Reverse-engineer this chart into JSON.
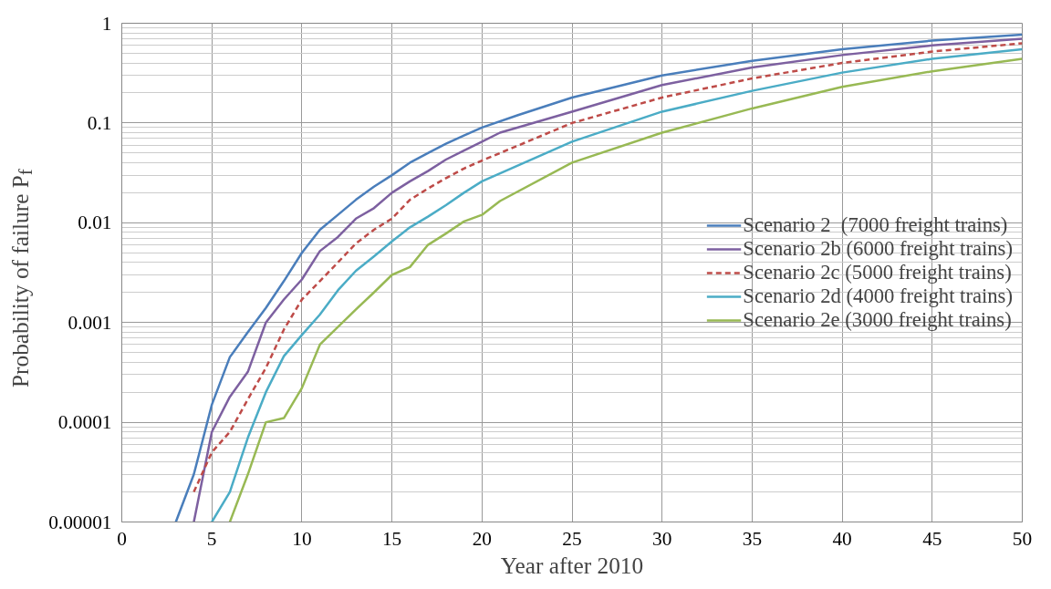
{
  "chart_data": {
    "type": "line",
    "xlabel": "Year after 2010",
    "ylabel": "Probability of failure P$_{f}$",
    "log": "y",
    "xlim": [
      0,
      50
    ],
    "xticks": [
      0,
      5,
      10,
      15,
      20,
      25,
      30,
      35,
      40,
      45,
      50
    ],
    "ylim": [
      1e-05,
      1
    ],
    "yticks": [
      {
        "value": 1e-05,
        "label": "0.00001"
      },
      {
        "value": 0.0001,
        "label": "0.0001"
      },
      {
        "value": 0.001,
        "label": "0.001"
      },
      {
        "value": 0.01,
        "label": "0.01"
      },
      {
        "value": 0.1,
        "label": "0.1"
      },
      {
        "value": 1,
        "label": "1"
      }
    ],
    "grid": true,
    "legend": "right",
    "marker": "none",
    "series": [
      {
        "name": "Scenario 2  (7000 freight trains)",
        "color": "#4a7ebb",
        "line_style": "solid",
        "x": [
          3,
          4,
          5,
          6,
          7,
          8,
          9,
          10,
          11,
          12,
          13,
          14,
          15,
          16,
          17,
          18,
          19,
          20,
          22,
          25,
          30,
          35,
          40,
          45,
          50
        ],
        "values": [
          1e-05,
          3e-05,
          0.00015,
          0.00045,
          0.0008,
          0.0014,
          0.0026,
          0.005,
          0.0085,
          0.012,
          0.017,
          0.023,
          0.03,
          0.04,
          0.05,
          0.062,
          0.075,
          0.09,
          0.12,
          0.18,
          0.3,
          0.42,
          0.55,
          0.67,
          0.77
        ]
      },
      {
        "name": "Scenario 2b (6000 freight trains)",
        "color": "#7d60a0",
        "line_style": "solid",
        "x": [
          4,
          5,
          6,
          7,
          8,
          9,
          10,
          11,
          12,
          13,
          14,
          15,
          16,
          17,
          18,
          19,
          20,
          21,
          25,
          30,
          35,
          40,
          45,
          50
        ],
        "values": [
          1e-05,
          8e-05,
          0.00018,
          0.00032,
          0.001,
          0.0017,
          0.0027,
          0.0052,
          0.0072,
          0.011,
          0.014,
          0.02,
          0.026,
          0.033,
          0.043,
          0.053,
          0.065,
          0.08,
          0.13,
          0.24,
          0.36,
          0.48,
          0.6,
          0.7
        ]
      },
      {
        "name": "Scenario 2c (5000 freight trains)",
        "color": "#be4b48",
        "line_style": "dashed",
        "x": [
          4,
          5,
          6,
          7,
          8,
          9,
          10,
          11,
          12,
          13,
          14,
          15,
          16,
          17,
          18,
          19,
          20,
          25,
          30,
          35,
          40,
          45,
          50
        ],
        "values": [
          2e-05,
          5e-05,
          8e-05,
          0.00017,
          0.00035,
          0.00085,
          0.0017,
          0.0026,
          0.004,
          0.0062,
          0.0085,
          0.011,
          0.017,
          0.022,
          0.028,
          0.035,
          0.042,
          0.1,
          0.18,
          0.28,
          0.4,
          0.52,
          0.63
        ]
      },
      {
        "name": "Scenario 2d (4000 freight trains)",
        "color": "#4bacc6",
        "line_style": "solid",
        "x": [
          5,
          6,
          7,
          8,
          9,
          10,
          11,
          12,
          13,
          14,
          15,
          16,
          17,
          18,
          19,
          20,
          25,
          30,
          35,
          40,
          45,
          50
        ],
        "values": [
          1e-05,
          2e-05,
          7e-05,
          0.0002,
          0.00046,
          0.00075,
          0.0012,
          0.0021,
          0.0033,
          0.0046,
          0.0065,
          0.009,
          0.0115,
          0.015,
          0.02,
          0.026,
          0.065,
          0.13,
          0.21,
          0.32,
          0.44,
          0.55
        ]
      },
      {
        "name": "Scenario 2e (3000 freight trains)",
        "color": "#98b954",
        "line_style": "solid",
        "x": [
          6,
          7,
          8,
          9,
          10,
          11,
          12,
          13,
          14,
          15,
          16,
          17,
          18,
          19,
          20,
          21,
          25,
          30,
          35,
          40,
          45,
          50
        ],
        "values": [
          1e-05,
          3e-05,
          0.0001,
          0.00011,
          0.00022,
          0.0006,
          0.0009,
          0.00135,
          0.002,
          0.003,
          0.0036,
          0.006,
          0.0078,
          0.0103,
          0.012,
          0.0165,
          0.04,
          0.08,
          0.14,
          0.23,
          0.33,
          0.44
        ]
      }
    ]
  }
}
